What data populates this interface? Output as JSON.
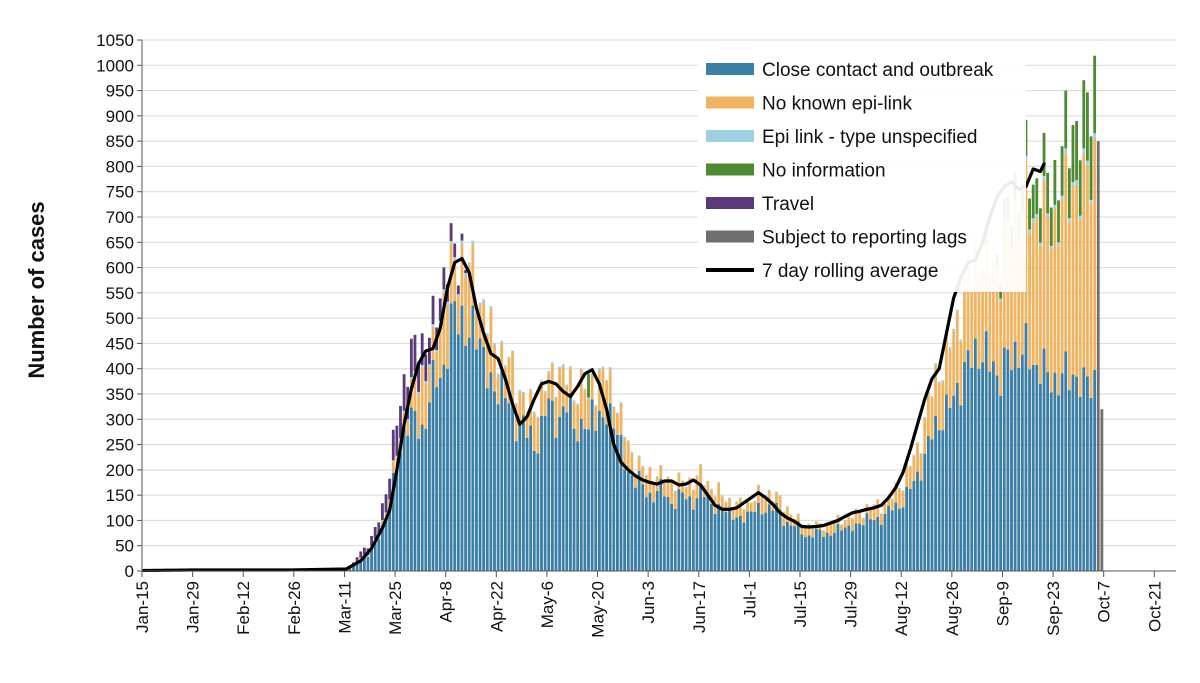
{
  "chart_data": {
    "type": "bar",
    "stacked": true,
    "title": "",
    "xlabel": "",
    "ylabel": "Number of cases",
    "ylim": [
      0,
      1050
    ],
    "ytick_step": 50,
    "grid": true,
    "legend_position": "top-right",
    "date_range": {
      "start": "Jan-15",
      "end": "Oct-26",
      "days": 286
    },
    "xtick_labels": [
      "Jan-15",
      "Jan-29",
      "Feb-12",
      "Feb-26",
      "Mar-11",
      "Mar-25",
      "Apr-8",
      "Apr-22",
      "May-6",
      "May-20",
      "Jun-3",
      "Jun-17",
      "Jul-1",
      "Jul-15",
      "Jul-29",
      "Aug-12",
      "Aug-26",
      "Sep-9",
      "Sep-23",
      "Oct-7",
      "Oct-21"
    ],
    "colors": {
      "close_contact": "#3b7ea6",
      "no_known": "#f0b461",
      "epi_unspecified": "#9dd0e0",
      "no_information": "#4e8a32",
      "travel": "#5b3a7a",
      "reporting_lags": "#6f6f6f",
      "rolling": "#000000"
    },
    "legend": [
      {
        "key": "close_contact",
        "label": "Close contact and outbreak",
        "kind": "box"
      },
      {
        "key": "no_known",
        "label": "No known epi-link",
        "kind": "box"
      },
      {
        "key": "epi_unspecified",
        "label": "Epi link - type unspecified",
        "kind": "box"
      },
      {
        "key": "no_information",
        "label": "No information",
        "kind": "box"
      },
      {
        "key": "travel",
        "label": "Travel",
        "kind": "box"
      },
      {
        "key": "reporting_lags",
        "label": "Subject to reporting lags",
        "kind": "box"
      },
      {
        "key": "rolling",
        "label": "7 day rolling average",
        "kind": "line"
      }
    ],
    "total_keypoints": [
      [
        0,
        1
      ],
      [
        10,
        3
      ],
      [
        14,
        2
      ],
      [
        40,
        2
      ],
      [
        54,
        2
      ],
      [
        56,
        5
      ],
      [
        58,
        15
      ],
      [
        60,
        40
      ],
      [
        62,
        50
      ],
      [
        64,
        80
      ],
      [
        66,
        130
      ],
      [
        68,
        190
      ],
      [
        70,
        300
      ],
      [
        72,
        380
      ],
      [
        74,
        420
      ],
      [
        76,
        460
      ],
      [
        78,
        450
      ],
      [
        80,
        480
      ],
      [
        82,
        560
      ],
      [
        84,
        610
      ],
      [
        86,
        630
      ],
      [
        88,
        640
      ],
      [
        90,
        600
      ],
      [
        92,
        570
      ],
      [
        94,
        520
      ],
      [
        96,
        470
      ],
      [
        98,
        440
      ],
      [
        100,
        420
      ],
      [
        102,
        400
      ],
      [
        104,
        360
      ],
      [
        106,
        320
      ],
      [
        108,
        330
      ],
      [
        110,
        350
      ],
      [
        112,
        380
      ],
      [
        114,
        400
      ],
      [
        116,
        390
      ],
      [
        118,
        370
      ],
      [
        120,
        360
      ],
      [
        122,
        370
      ],
      [
        124,
        380
      ],
      [
        126,
        380
      ],
      [
        128,
        390
      ],
      [
        130,
        360
      ],
      [
        132,
        300
      ],
      [
        134,
        250
      ],
      [
        136,
        220
      ],
      [
        138,
        200
      ],
      [
        140,
        195
      ],
      [
        142,
        190
      ],
      [
        144,
        185
      ],
      [
        146,
        180
      ],
      [
        148,
        175
      ],
      [
        150,
        175
      ],
      [
        152,
        180
      ],
      [
        154,
        190
      ],
      [
        156,
        175
      ],
      [
        158,
        160
      ],
      [
        160,
        150
      ],
      [
        162,
        140
      ],
      [
        164,
        130
      ],
      [
        166,
        135
      ],
      [
        168,
        140
      ],
      [
        170,
        150
      ],
      [
        172,
        160
      ],
      [
        174,
        150
      ],
      [
        176,
        140
      ],
      [
        178,
        125
      ],
      [
        180,
        105
      ],
      [
        182,
        95
      ],
      [
        184,
        90
      ],
      [
        186,
        90
      ],
      [
        188,
        92
      ],
      [
        190,
        95
      ],
      [
        192,
        100
      ],
      [
        194,
        105
      ],
      [
        196,
        110
      ],
      [
        198,
        115
      ],
      [
        200,
        125
      ],
      [
        202,
        130
      ],
      [
        204,
        130
      ],
      [
        206,
        140
      ],
      [
        208,
        160
      ],
      [
        210,
        180
      ],
      [
        212,
        210
      ],
      [
        214,
        240
      ],
      [
        216,
        300
      ],
      [
        218,
        360
      ],
      [
        220,
        400
      ],
      [
        222,
        430
      ],
      [
        224,
        470
      ],
      [
        226,
        530
      ],
      [
        228,
        580
      ],
      [
        230,
        620
      ],
      [
        232,
        640
      ],
      [
        234,
        600
      ],
      [
        236,
        620
      ],
      [
        238,
        680
      ],
      [
        240,
        720
      ],
      [
        242,
        780
      ],
      [
        244,
        790
      ],
      [
        246,
        760
      ],
      [
        248,
        800
      ],
      [
        250,
        760
      ],
      [
        252,
        780
      ],
      [
        254,
        830
      ],
      [
        256,
        860
      ],
      [
        258,
        900
      ],
      [
        260,
        860
      ],
      [
        261,
        940
      ],
      [
        262,
        930
      ],
      [
        263,
        980
      ]
    ],
    "rolling_keypoints": [
      [
        0,
        1
      ],
      [
        14,
        2
      ],
      [
        40,
        2
      ],
      [
        56,
        4
      ],
      [
        60,
        20
      ],
      [
        63,
        45
      ],
      [
        66,
        85
      ],
      [
        68,
        120
      ],
      [
        70,
        200
      ],
      [
        72,
        290
      ],
      [
        74,
        360
      ],
      [
        76,
        410
      ],
      [
        78,
        435
      ],
      [
        80,
        440
      ],
      [
        82,
        480
      ],
      [
        84,
        560
      ],
      [
        86,
        610
      ],
      [
        88,
        618
      ],
      [
        90,
        590
      ],
      [
        92,
        520
      ],
      [
        94,
        470
      ],
      [
        96,
        430
      ],
      [
        98,
        420
      ],
      [
        100,
        380
      ],
      [
        102,
        330
      ],
      [
        104,
        290
      ],
      [
        106,
        305
      ],
      [
        108,
        340
      ],
      [
        110,
        370
      ],
      [
        112,
        375
      ],
      [
        114,
        370
      ],
      [
        116,
        355
      ],
      [
        118,
        345
      ],
      [
        120,
        365
      ],
      [
        122,
        390
      ],
      [
        124,
        398
      ],
      [
        126,
        370
      ],
      [
        128,
        320
      ],
      [
        130,
        250
      ],
      [
        132,
        215
      ],
      [
        134,
        200
      ],
      [
        136,
        188
      ],
      [
        138,
        180
      ],
      [
        140,
        175
      ],
      [
        142,
        172
      ],
      [
        144,
        178
      ],
      [
        146,
        178
      ],
      [
        148,
        170
      ],
      [
        150,
        172
      ],
      [
        152,
        180
      ],
      [
        154,
        170
      ],
      [
        156,
        150
      ],
      [
        158,
        130
      ],
      [
        160,
        122
      ],
      [
        162,
        122
      ],
      [
        164,
        125
      ],
      [
        166,
        135
      ],
      [
        168,
        145
      ],
      [
        170,
        155
      ],
      [
        172,
        145
      ],
      [
        174,
        132
      ],
      [
        176,
        115
      ],
      [
        178,
        105
      ],
      [
        180,
        98
      ],
      [
        182,
        88
      ],
      [
        184,
        87
      ],
      [
        186,
        88
      ],
      [
        188,
        90
      ],
      [
        190,
        95
      ],
      [
        192,
        100
      ],
      [
        194,
        108
      ],
      [
        196,
        115
      ],
      [
        198,
        118
      ],
      [
        200,
        122
      ],
      [
        202,
        125
      ],
      [
        204,
        130
      ],
      [
        206,
        145
      ],
      [
        208,
        165
      ],
      [
        210,
        195
      ],
      [
        212,
        240
      ],
      [
        214,
        290
      ],
      [
        216,
        340
      ],
      [
        218,
        380
      ],
      [
        220,
        400
      ],
      [
        222,
        470
      ],
      [
        224,
        540
      ],
      [
        226,
        580
      ],
      [
        228,
        610
      ],
      [
        230,
        615
      ],
      [
        232,
        650
      ],
      [
        234,
        700
      ],
      [
        236,
        740
      ],
      [
        238,
        760
      ],
      [
        240,
        770
      ],
      [
        242,
        755
      ],
      [
        244,
        760
      ],
      [
        246,
        795
      ],
      [
        248,
        790
      ],
      [
        249,
        805
      ]
    ]
  }
}
